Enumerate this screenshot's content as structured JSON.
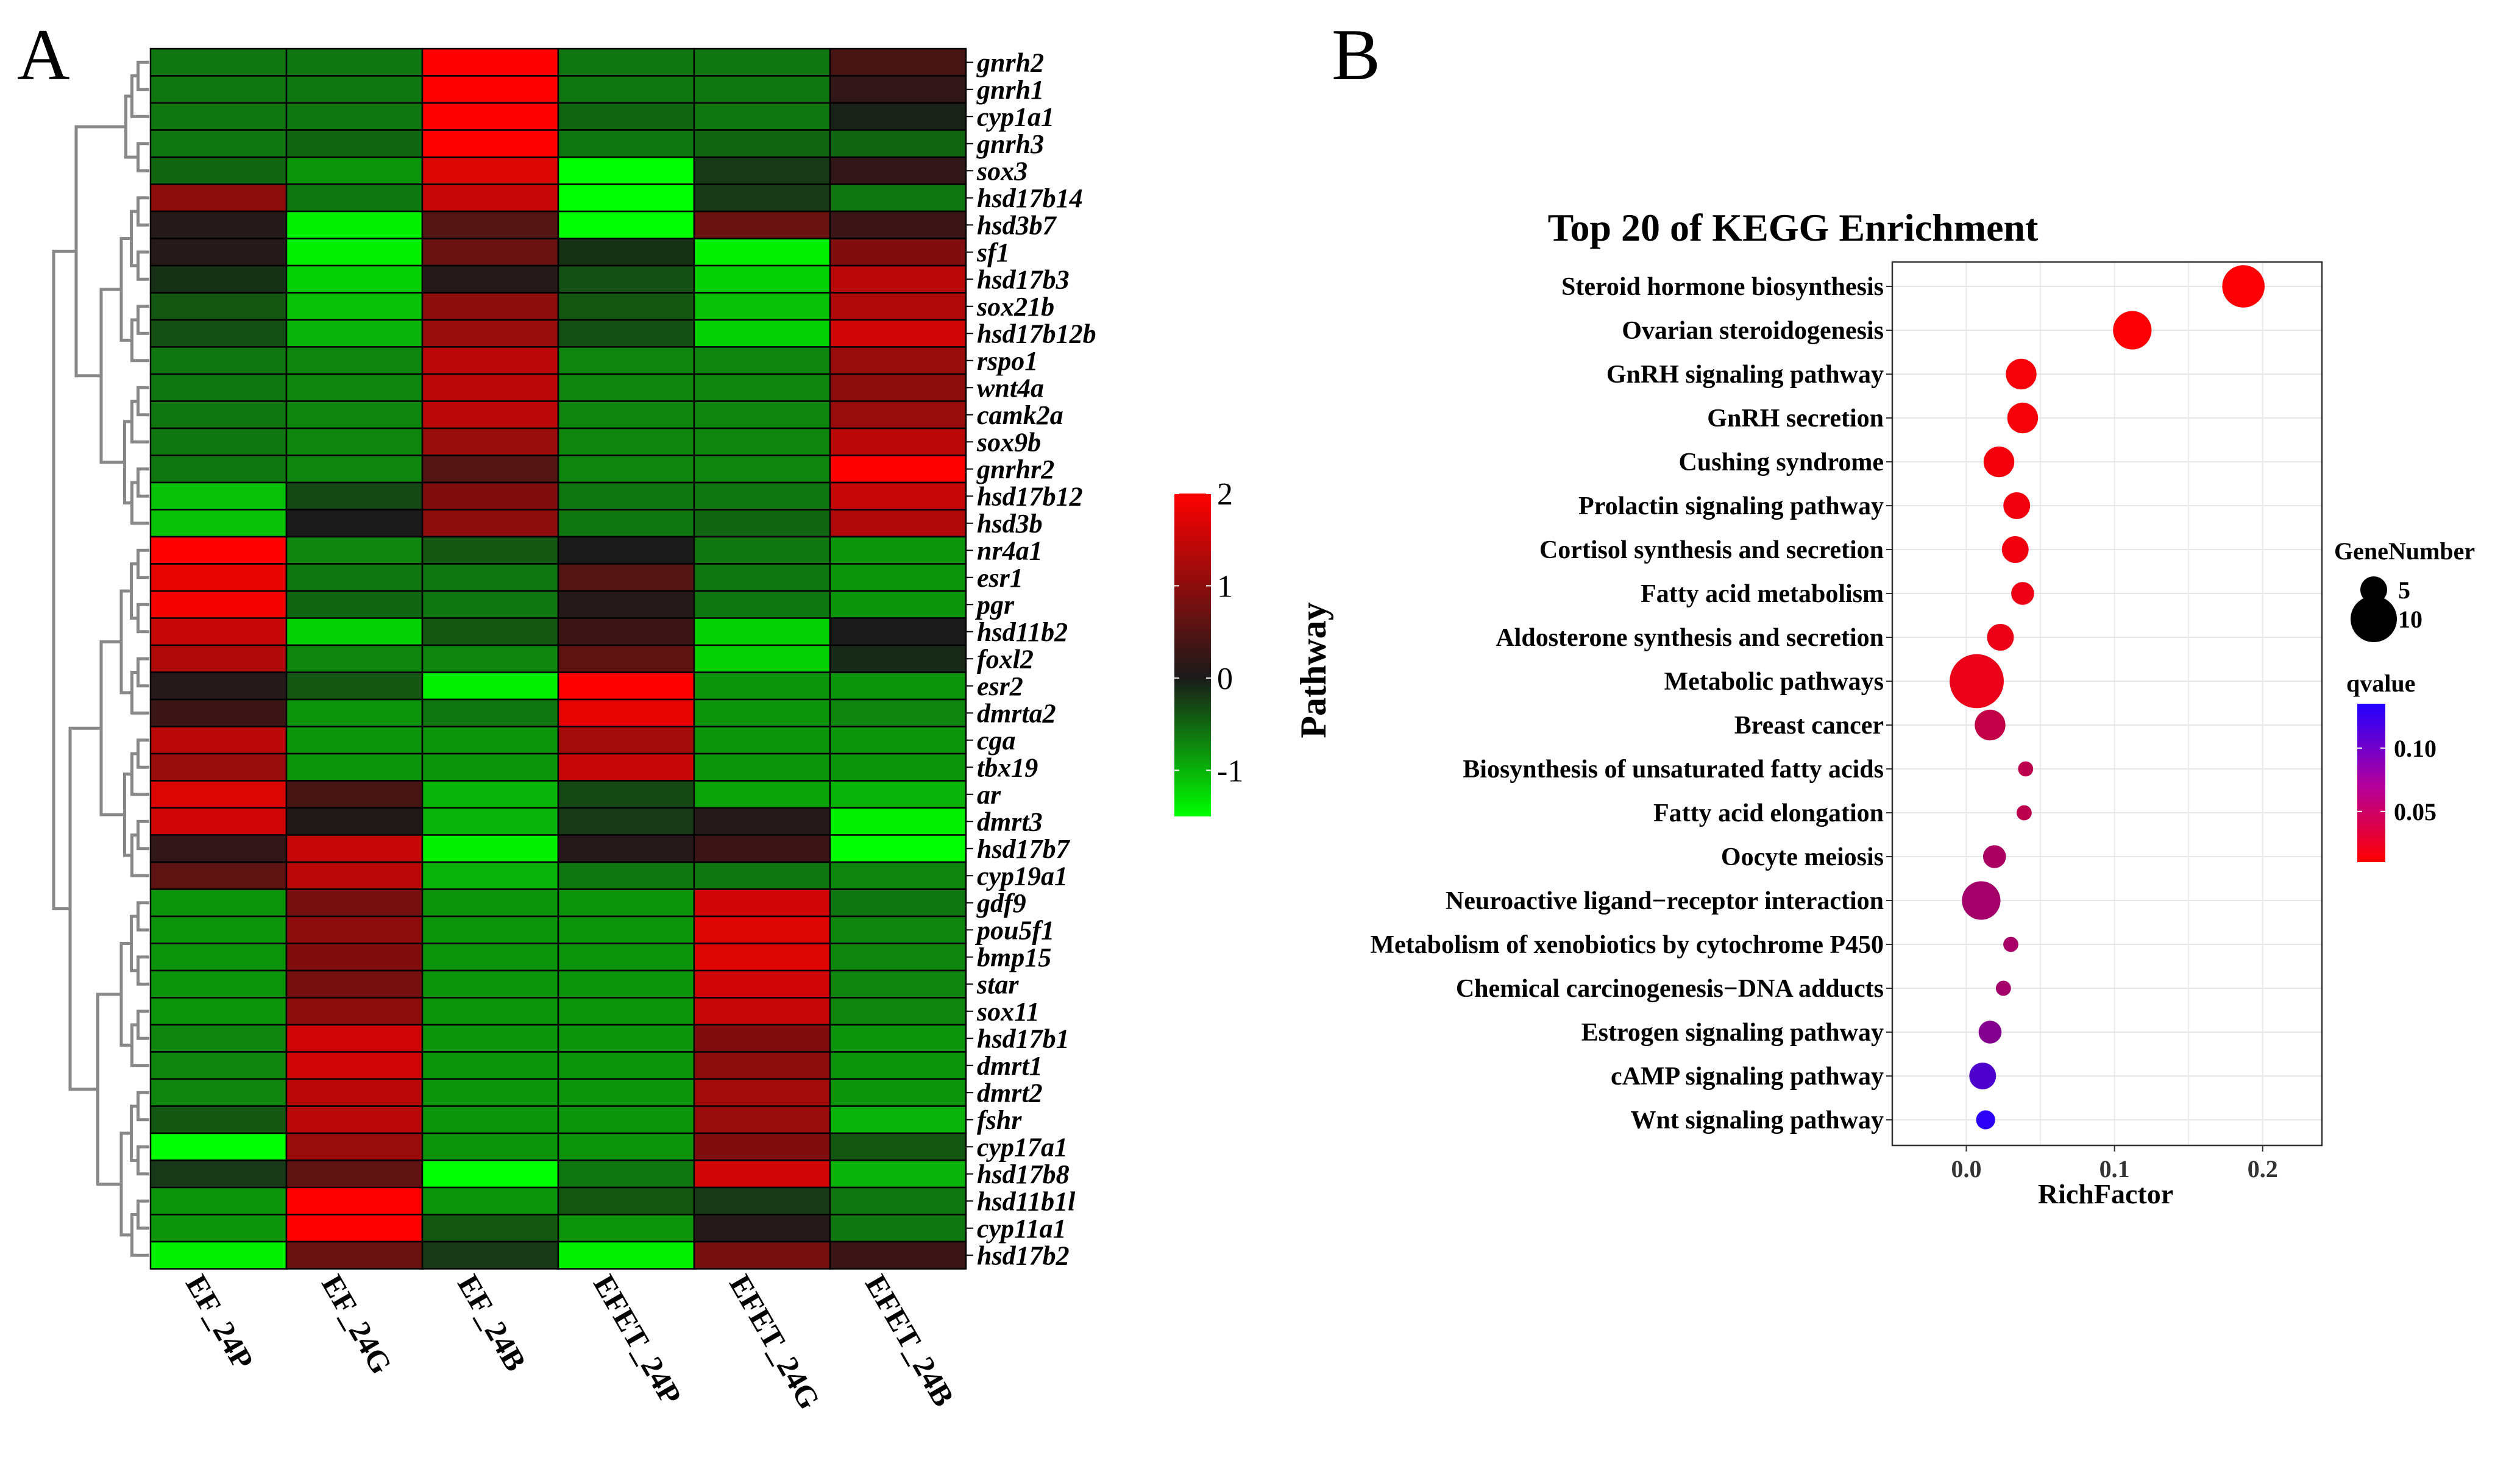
{
  "chart_data": [
    {
      "panel": "A",
      "type": "heatmap",
      "title": "",
      "colorscale": {
        "low": "#00ff00",
        "mid": "#1a1a1a",
        "high": "#ff0000",
        "range": [
          -1.5,
          2
        ],
        "ticks": [
          -1,
          0,
          1,
          2
        ]
      },
      "columns": [
        "EF_24P",
        "EF_24G",
        "EF_24B",
        "EFET_24P",
        "EFET_24G",
        "EFET_24B"
      ],
      "rows": [
        "gnrh2",
        "gnrh1",
        "cyp1a1",
        "gnrh3",
        "sox3",
        "hsd17b14",
        "hsd3b7",
        "sf1",
        "hsd17b3",
        "sox21b",
        "hsd17b12b",
        "rspo1",
        "wnt4a",
        "camk2a",
        "sox9b",
        "gnrhr2",
        "hsd17b12",
        "hsd3b",
        "nr4a1",
        "esr1",
        "pgr",
        "hsd11b2",
        "foxl2",
        "esr2",
        "dmrta2",
        "cga",
        "tbx19",
        "ar",
        "dmrt3",
        "hsd17b7",
        "cyp19a1",
        "gdf9",
        "pou5f1",
        "bmp15",
        "star",
        "sox11",
        "hsd17b1",
        "dmrt1",
        "dmrt2",
        "fshr",
        "cyp17a1",
        "hsd17b8",
        "hsd11b1l",
        "cyp11a1",
        "hsd17b2"
      ],
      "values": [
        [
          -0.6,
          -0.6,
          2.0,
          -0.6,
          -0.6,
          0.4
        ],
        [
          -0.6,
          -0.6,
          2.0,
          -0.6,
          -0.6,
          0.2
        ],
        [
          -0.6,
          -0.6,
          2.0,
          -0.5,
          -0.6,
          -0.05
        ],
        [
          -0.6,
          -0.5,
          2.0,
          -0.6,
          -0.5,
          -0.5
        ],
        [
          -0.5,
          -0.8,
          1.7,
          -1.5,
          -0.2,
          0.2
        ],
        [
          1.0,
          -0.6,
          1.5,
          -1.5,
          -0.2,
          -0.6
        ],
        [
          0.1,
          -1.4,
          0.5,
          -1.5,
          0.7,
          0.3
        ],
        [
          0.1,
          -1.4,
          0.7,
          -0.15,
          -1.4,
          0.9
        ],
        [
          -0.15,
          -1.2,
          0.1,
          -0.35,
          -1.2,
          1.4
        ],
        [
          -0.4,
          -1.1,
          1.0,
          -0.4,
          -1.1,
          1.3
        ],
        [
          -0.35,
          -1.0,
          1.1,
          -0.35,
          -1.2,
          1.6
        ],
        [
          -0.6,
          -0.7,
          1.4,
          -0.7,
          -0.7,
          1.1
        ],
        [
          -0.6,
          -0.7,
          1.4,
          -0.7,
          -0.7,
          1.0
        ],
        [
          -0.6,
          -0.7,
          1.4,
          -0.7,
          -0.7,
          1.1
        ],
        [
          -0.6,
          -0.7,
          1.1,
          -0.7,
          -0.7,
          1.4
        ],
        [
          -0.6,
          -0.7,
          0.5,
          -0.7,
          -0.7,
          2.0
        ],
        [
          -1.1,
          -0.3,
          0.9,
          -0.6,
          -0.6,
          1.5
        ],
        [
          -1.1,
          0.0,
          1.0,
          -0.6,
          -0.5,
          1.3
        ],
        [
          2.0,
          -0.7,
          -0.4,
          0.0,
          -0.6,
          -0.8
        ],
        [
          1.8,
          -0.6,
          -0.6,
          0.5,
          -0.6,
          -0.8
        ],
        [
          1.9,
          -0.5,
          -0.6,
          0.1,
          -0.6,
          -0.8
        ],
        [
          1.5,
          -1.2,
          -0.4,
          0.3,
          -1.2,
          0.0
        ],
        [
          1.3,
          -0.7,
          -0.7,
          0.6,
          -1.2,
          -0.1
        ],
        [
          0.1,
          -0.4,
          -1.4,
          2.0,
          -0.8,
          -0.8
        ],
        [
          0.3,
          -0.8,
          -0.6,
          1.8,
          -0.8,
          -0.7
        ],
        [
          1.4,
          -0.8,
          -0.8,
          1.2,
          -0.8,
          -0.8
        ],
        [
          1.1,
          -0.8,
          -0.8,
          1.5,
          -0.8,
          -0.8
        ],
        [
          1.7,
          0.4,
          -1.0,
          -0.3,
          -0.9,
          -1.0
        ],
        [
          1.6,
          0.05,
          -1.0,
          -0.2,
          0.1,
          -1.4
        ],
        [
          0.2,
          1.5,
          -1.4,
          0.1,
          0.3,
          -1.5
        ],
        [
          0.6,
          1.4,
          -1.0,
          -0.6,
          -0.6,
          -0.7
        ],
        [
          -0.8,
          0.8,
          -0.8,
          -0.8,
          1.6,
          -0.6
        ],
        [
          -0.8,
          1.0,
          -0.8,
          -0.8,
          1.7,
          -0.7
        ],
        [
          -0.8,
          0.9,
          -0.8,
          -0.8,
          1.7,
          -0.7
        ],
        [
          -0.8,
          0.8,
          -0.8,
          -0.8,
          1.6,
          -0.7
        ],
        [
          -0.8,
          1.0,
          -0.8,
          -0.8,
          1.5,
          -0.7
        ],
        [
          -0.7,
          1.6,
          -0.8,
          -0.8,
          0.9,
          -0.8
        ],
        [
          -0.7,
          1.6,
          -0.8,
          -0.8,
          1.0,
          -0.8
        ],
        [
          -0.7,
          1.4,
          -0.8,
          -0.8,
          1.2,
          -0.8
        ],
        [
          -0.4,
          1.4,
          -0.8,
          -0.8,
          1.1,
          -1.0
        ],
        [
          -1.6,
          1.1,
          -0.8,
          -0.8,
          0.9,
          -0.4
        ],
        [
          -0.2,
          0.6,
          -1.5,
          -0.6,
          1.6,
          -1.0
        ],
        [
          -0.8,
          2.0,
          -0.8,
          -0.4,
          -0.2,
          -0.6
        ],
        [
          -0.8,
          2.0,
          -0.4,
          -0.8,
          0.1,
          -0.6
        ],
        [
          -1.4,
          0.7,
          -0.2,
          -1.4,
          0.8,
          0.3
        ]
      ]
    },
    {
      "panel": "B",
      "type": "scatter",
      "title": "Top 20 of KEGG Enrichment",
      "xlabel": "RichFactor",
      "ylabel": "Pathway",
      "xlim": [
        -0.05,
        0.24
      ],
      "xticks": [
        0.0,
        0.1,
        0.2
      ],
      "xtick_labels": [
        "0.0",
        "0.1",
        "0.2"
      ],
      "grid": true,
      "size_legend": {
        "title": "GeneNumber",
        "entries": [
          5,
          10
        ]
      },
      "color_legend": {
        "title": "qvalue",
        "ticks": [
          0.1,
          0.05
        ],
        "tick_labels": [
          "0.10",
          "0.05"
        ],
        "range": [
          0.01,
          0.135
        ],
        "low_color": "#ff0000",
        "high_color": "#2200ff"
      },
      "pathways": [
        "Steroid hormone biosynthesis",
        "Ovarian steroidogenesis",
        "GnRH signaling pathway",
        "GnRH secretion",
        "Cushing syndrome",
        "Prolactin signaling pathway",
        "Cortisol synthesis and secretion",
        "Fatty acid metabolism",
        "Aldosterone synthesis and secretion",
        "Metabolic pathways",
        "Breast cancer",
        "Biosynthesis of unsaturated fatty acids",
        "Fatty acid elongation",
        "Oocyte meiosis",
        "Neuroactive ligand−receptor interaction",
        "Metabolism of xenobiotics by cytochrome P450",
        "Chemical carcinogenesis−DNA adducts",
        "Estrogen signaling pathway",
        "cAMP signaling pathway",
        "Wnt signaling pathway"
      ],
      "rich_factor": [
        0.187,
        0.112,
        0.037,
        0.038,
        0.022,
        0.034,
        0.033,
        0.038,
        0.023,
        0.007,
        0.016,
        0.04,
        0.039,
        0.019,
        0.01,
        0.03,
        0.025,
        0.016,
        0.011,
        0.013
      ],
      "gene_number": [
        9,
        8,
        6,
        6,
        6,
        5,
        5,
        4,
        5,
        12,
        6,
        2,
        2,
        4,
        8,
        2,
        2,
        4,
        5,
        3
      ],
      "qvalue": [
        0.012,
        0.012,
        0.015,
        0.015,
        0.016,
        0.017,
        0.018,
        0.02,
        0.021,
        0.022,
        0.045,
        0.048,
        0.048,
        0.058,
        0.062,
        0.06,
        0.062,
        0.08,
        0.11,
        0.13
      ]
    }
  ],
  "labels": {
    "panel_a": "A",
    "panel_b": "B"
  }
}
